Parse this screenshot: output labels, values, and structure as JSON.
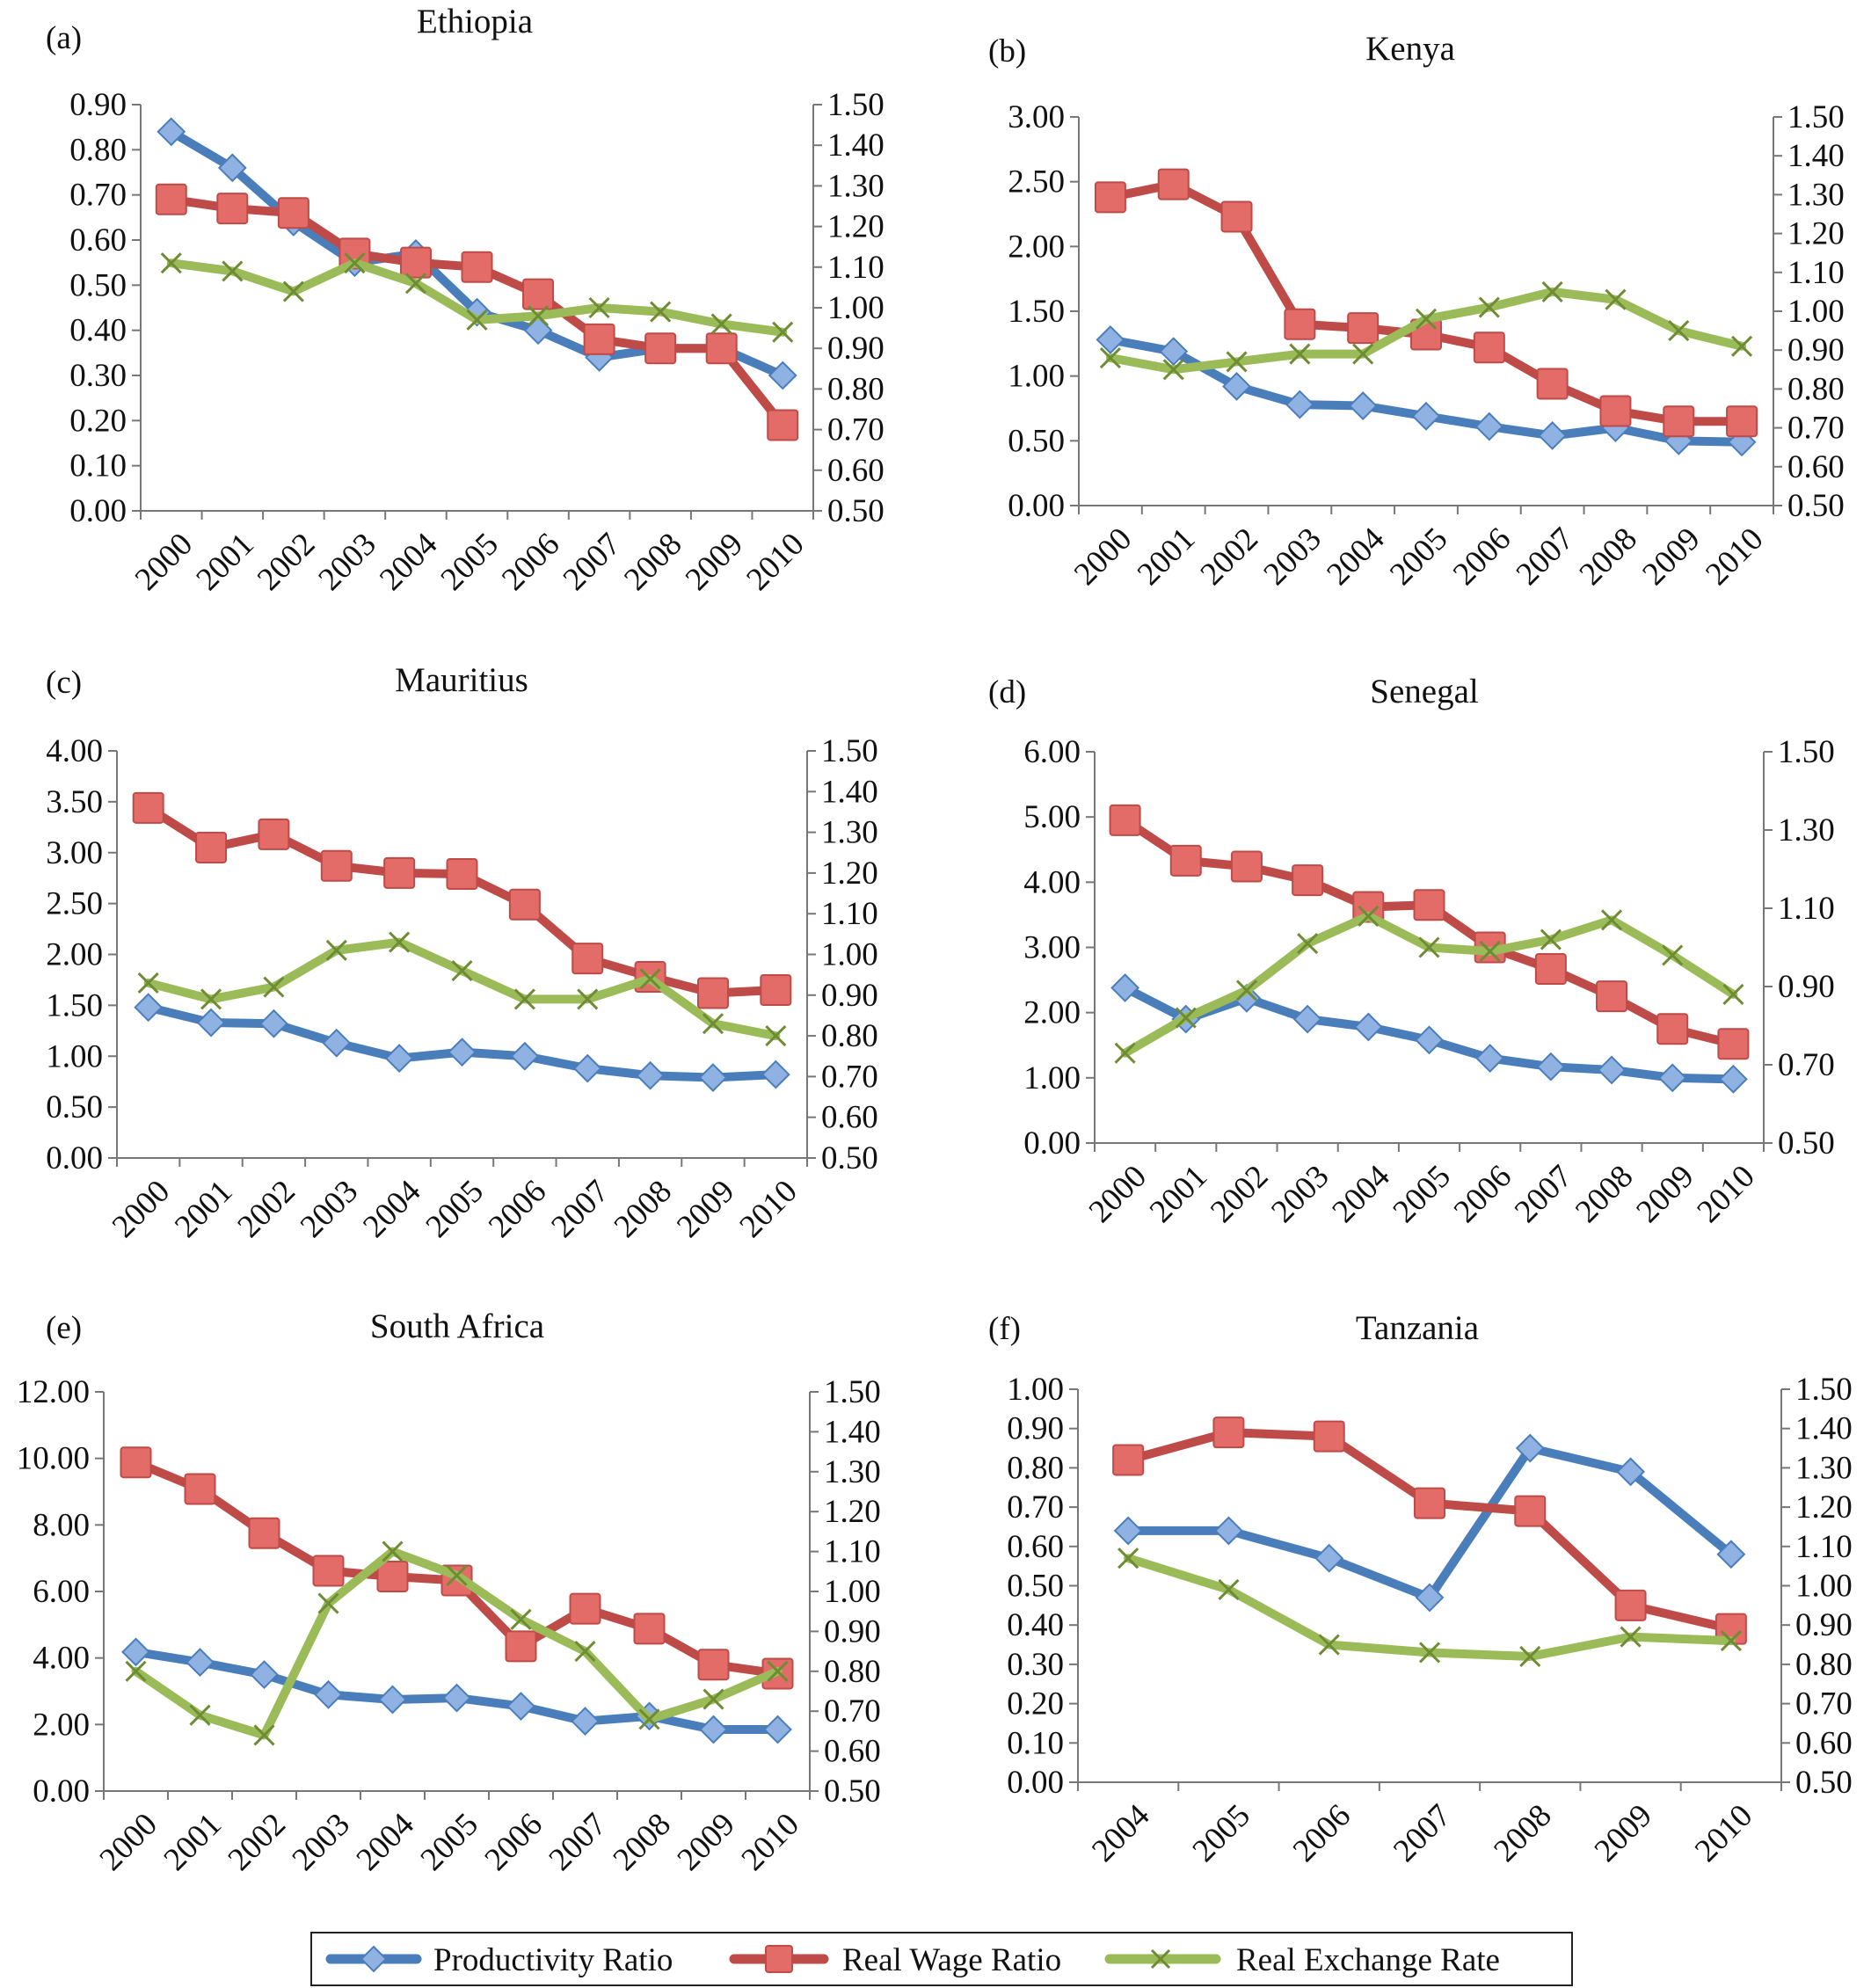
{
  "legend": {
    "items": [
      {
        "label": "Productivity Ratio",
        "color": "#4a7ebb",
        "marker": "diamond"
      },
      {
        "label": "Real Wage Ratio",
        "color": "#be4b48",
        "marker": "square"
      },
      {
        "label": "Real Exchange Rate",
        "color": "#9bbb59",
        "marker": "x"
      }
    ]
  },
  "chart_data": [
    {
      "type": "line",
      "panel": "(a)",
      "title": "Ethiopia",
      "categories": [
        "2000",
        "2001",
        "2002",
        "2003",
        "2004",
        "2005",
        "2006",
        "2007",
        "2008",
        "2009",
        "2010"
      ],
      "ylim": [
        0,
        0.9
      ],
      "y_ticks": [
        "0.00",
        "0.10",
        "0.20",
        "0.30",
        "0.40",
        "0.50",
        "0.60",
        "0.70",
        "0.80",
        "0.90"
      ],
      "y2lim": [
        0.5,
        1.5
      ],
      "y2_ticks": [
        "0.50",
        "0.60",
        "0.70",
        "0.80",
        "0.90",
        "1.00",
        "1.10",
        "1.20",
        "1.30",
        "1.40",
        "1.50"
      ],
      "series": [
        {
          "name": "Productivity Ratio",
          "axis": "left",
          "values": [
            0.84,
            0.76,
            0.64,
            0.55,
            0.57,
            0.44,
            0.4,
            0.34,
            0.36,
            0.36,
            0.3
          ]
        },
        {
          "name": "Real Wage Ratio",
          "axis": "left",
          "values": [
            0.69,
            0.67,
            0.66,
            0.57,
            0.55,
            0.54,
            0.48,
            0.38,
            0.36,
            0.36,
            0.19
          ]
        },
        {
          "name": "Real Exchange Rate",
          "axis": "right",
          "values": [
            1.11,
            1.09,
            1.04,
            1.11,
            1.06,
            0.97,
            0.98,
            1.0,
            0.99,
            0.96,
            0.94
          ]
        }
      ]
    },
    {
      "type": "line",
      "panel": "(b)",
      "title": "Kenya",
      "categories": [
        "2000",
        "2001",
        "2002",
        "2003",
        "2004",
        "2005",
        "2006",
        "2007",
        "2008",
        "2009",
        "2010"
      ],
      "ylim": [
        0,
        3
      ],
      "y_ticks": [
        "0.00",
        "0.50",
        "1.00",
        "1.50",
        "2.00",
        "2.50",
        "3.00"
      ],
      "y2lim": [
        0.5,
        1.5
      ],
      "y2_ticks": [
        "0.50",
        "0.60",
        "0.70",
        "0.80",
        "0.90",
        "1.00",
        "1.10",
        "1.20",
        "1.30",
        "1.40",
        "1.50"
      ],
      "series": [
        {
          "name": "Productivity Ratio",
          "axis": "left",
          "values": [
            1.28,
            1.19,
            0.92,
            0.78,
            0.77,
            0.69,
            0.61,
            0.54,
            0.6,
            0.5,
            0.49
          ]
        },
        {
          "name": "Real Wage Ratio",
          "axis": "left",
          "values": [
            2.38,
            2.48,
            2.23,
            1.4,
            1.37,
            1.32,
            1.22,
            0.94,
            0.73,
            0.65,
            0.65
          ]
        },
        {
          "name": "Real Exchange Rate",
          "axis": "right",
          "values": [
            0.88,
            0.85,
            0.87,
            0.89,
            0.89,
            0.98,
            1.01,
            1.05,
            1.03,
            0.95,
            0.91
          ]
        }
      ]
    },
    {
      "type": "line",
      "panel": "(c)",
      "title": "Mauritius",
      "categories": [
        "2000",
        "2001",
        "2002",
        "2003",
        "2004",
        "2005",
        "2006",
        "2007",
        "2008",
        "2009",
        "2010"
      ],
      "ylim": [
        0,
        4
      ],
      "y_ticks": [
        "0.00",
        "0.50",
        "1.00",
        "1.50",
        "2.00",
        "2.50",
        "3.00",
        "3.50",
        "4.00"
      ],
      "y2lim": [
        0.5,
        1.5
      ],
      "y2_ticks": [
        "0.50",
        "0.60",
        "0.70",
        "0.80",
        "0.90",
        "1.00",
        "1.10",
        "1.20",
        "1.30",
        "1.40",
        "1.50"
      ],
      "series": [
        {
          "name": "Productivity Ratio",
          "axis": "left",
          "values": [
            1.48,
            1.33,
            1.32,
            1.13,
            0.98,
            1.04,
            1.0,
            0.88,
            0.81,
            0.79,
            0.82
          ]
        },
        {
          "name": "Real Wage Ratio",
          "axis": "left",
          "values": [
            3.44,
            3.05,
            3.18,
            2.87,
            2.8,
            2.79,
            2.49,
            1.96,
            1.78,
            1.62,
            1.65
          ]
        },
        {
          "name": "Real Exchange Rate",
          "axis": "right",
          "values": [
            0.93,
            0.89,
            0.92,
            1.01,
            1.03,
            0.96,
            0.89,
            0.89,
            0.94,
            0.83,
            0.8
          ]
        }
      ]
    },
    {
      "type": "line",
      "panel": "(d)",
      "title": "Senegal",
      "categories": [
        "2000",
        "2001",
        "2002",
        "2003",
        "2004",
        "2005",
        "2006",
        "2007",
        "2008",
        "2009",
        "2010"
      ],
      "ylim": [
        0,
        6
      ],
      "y_ticks": [
        "0.00",
        "1.00",
        "2.00",
        "3.00",
        "4.00",
        "5.00",
        "6.00"
      ],
      "y2lim": [
        0.5,
        1.5
      ],
      "y2_ticks": [
        "0.50",
        "0.70",
        "0.90",
        "1.10",
        "1.30",
        "1.50"
      ],
      "series": [
        {
          "name": "Productivity Ratio",
          "axis": "left",
          "values": [
            2.38,
            1.9,
            2.22,
            1.9,
            1.78,
            1.58,
            1.3,
            1.17,
            1.12,
            1.0,
            0.98
          ]
        },
        {
          "name": "Real Wage Ratio",
          "axis": "left",
          "values": [
            4.95,
            4.33,
            4.24,
            4.03,
            3.62,
            3.65,
            3.0,
            2.67,
            2.25,
            1.75,
            1.52
          ]
        },
        {
          "name": "Real Exchange Rate",
          "axis": "right",
          "values": [
            0.73,
            0.82,
            0.89,
            1.01,
            1.08,
            1.0,
            0.99,
            1.02,
            1.07,
            0.98,
            0.88
          ]
        }
      ]
    },
    {
      "type": "line",
      "panel": "(e)",
      "title": "South Africa",
      "categories": [
        "2000",
        "2001",
        "2002",
        "2003",
        "2004",
        "2005",
        "2006",
        "2007",
        "2008",
        "2009",
        "2010"
      ],
      "ylim": [
        0,
        12
      ],
      "y_ticks": [
        "0.00",
        "2.00",
        "4.00",
        "6.00",
        "8.00",
        "10.00",
        "12.00"
      ],
      "y2lim": [
        0.5,
        1.5
      ],
      "y2_ticks": [
        "0.50",
        "0.60",
        "0.70",
        "0.80",
        "0.90",
        "1.00",
        "1.10",
        "1.20",
        "1.30",
        "1.40",
        "1.50"
      ],
      "series": [
        {
          "name": "Productivity Ratio",
          "axis": "left",
          "values": [
            4.18,
            3.87,
            3.5,
            2.9,
            2.75,
            2.8,
            2.55,
            2.1,
            2.25,
            1.85,
            1.85
          ]
        },
        {
          "name": "Real Wage Ratio",
          "axis": "left",
          "values": [
            9.88,
            9.08,
            7.75,
            6.62,
            6.45,
            6.33,
            4.35,
            5.48,
            4.88,
            3.8,
            3.53
          ]
        },
        {
          "name": "Real Exchange Rate",
          "axis": "right",
          "values": [
            0.8,
            0.69,
            0.64,
            0.97,
            1.1,
            1.04,
            0.93,
            0.85,
            0.68,
            0.73,
            0.8
          ]
        }
      ]
    },
    {
      "type": "line",
      "panel": "(f)",
      "title": "Tanzania",
      "categories": [
        "2004",
        "2005",
        "2006",
        "2007",
        "2008",
        "2009",
        "2010"
      ],
      "ylim": [
        0,
        1
      ],
      "y_ticks": [
        "0.00",
        "0.10",
        "0.20",
        "0.30",
        "0.40",
        "0.50",
        "0.60",
        "0.70",
        "0.80",
        "0.90",
        "1.00"
      ],
      "y2lim": [
        0.5,
        1.5
      ],
      "y2_ticks": [
        "0.50",
        "0.60",
        "0.70",
        "0.80",
        "0.90",
        "1.00",
        "1.10",
        "1.20",
        "1.30",
        "1.40",
        "1.50"
      ],
      "series": [
        {
          "name": "Productivity Ratio",
          "axis": "left",
          "values": [
            0.64,
            0.64,
            0.57,
            0.47,
            0.85,
            0.79,
            0.58
          ]
        },
        {
          "name": "Real Wage Ratio",
          "axis": "left",
          "values": [
            0.82,
            0.89,
            0.88,
            0.71,
            0.69,
            0.45,
            0.39
          ]
        },
        {
          "name": "Real Exchange Rate",
          "axis": "right",
          "values": [
            1.07,
            0.99,
            0.85,
            0.83,
            0.82,
            0.87,
            0.86
          ]
        }
      ]
    }
  ]
}
